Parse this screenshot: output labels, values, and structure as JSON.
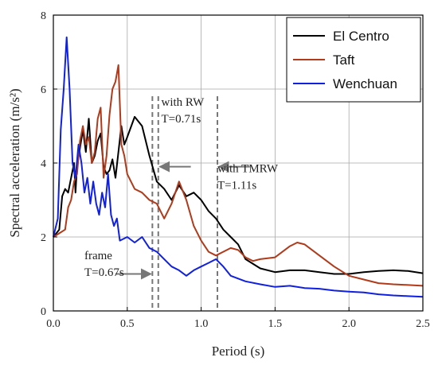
{
  "chart_data": {
    "type": "line",
    "xlabel": "Period (s)",
    "ylabel": "Spectral acceleration (m/s²)",
    "xlim": [
      0,
      2.5
    ],
    "ylim": [
      0,
      8
    ],
    "xticks": [
      "0.0",
      "0.5",
      "1.0",
      "1.5",
      "2.0",
      "2.5"
    ],
    "yticks": [
      "0",
      "2",
      "4",
      "6",
      "8"
    ],
    "grid": true,
    "legend": "top-right",
    "series": [
      {
        "name": "El Centro",
        "color": "#000000",
        "x": [
          0.0,
          0.04,
          0.06,
          0.08,
          0.1,
          0.12,
          0.14,
          0.15,
          0.16,
          0.18,
          0.2,
          0.22,
          0.24,
          0.26,
          0.28,
          0.3,
          0.32,
          0.34,
          0.36,
          0.38,
          0.4,
          0.42,
          0.44,
          0.46,
          0.48,
          0.5,
          0.55,
          0.6,
          0.65,
          0.7,
          0.75,
          0.8,
          0.85,
          0.9,
          0.95,
          1.0,
          1.05,
          1.1,
          1.15,
          1.2,
          1.25,
          1.3,
          1.4,
          1.5,
          1.6,
          1.7,
          1.8,
          1.9,
          2.0,
          2.1,
          2.2,
          2.3,
          2.4,
          2.5
        ],
        "y": [
          2.0,
          2.2,
          3.1,
          3.3,
          3.2,
          3.6,
          4.0,
          3.2,
          3.9,
          4.4,
          4.9,
          4.3,
          5.2,
          4.0,
          4.2,
          4.6,
          4.8,
          3.9,
          3.7,
          3.8,
          4.1,
          3.6,
          4.3,
          5.0,
          4.5,
          4.7,
          5.25,
          5.0,
          4.2,
          3.5,
          3.3,
          3.0,
          3.4,
          3.1,
          3.2,
          3.0,
          2.7,
          2.5,
          2.2,
          2.0,
          1.8,
          1.4,
          1.15,
          1.05,
          1.1,
          1.1,
          1.05,
          1.0,
          1.0,
          1.05,
          1.08,
          1.1,
          1.08,
          1.02
        ]
      },
      {
        "name": "Taft",
        "color": "#b03a1a",
        "x": [
          0.0,
          0.04,
          0.08,
          0.1,
          0.12,
          0.14,
          0.16,
          0.18,
          0.2,
          0.22,
          0.24,
          0.26,
          0.28,
          0.3,
          0.32,
          0.34,
          0.36,
          0.38,
          0.4,
          0.42,
          0.44,
          0.46,
          0.48,
          0.5,
          0.55,
          0.6,
          0.65,
          0.7,
          0.75,
          0.8,
          0.85,
          0.9,
          0.95,
          1.0,
          1.05,
          1.1,
          1.15,
          1.2,
          1.25,
          1.3,
          1.35,
          1.4,
          1.5,
          1.55,
          1.6,
          1.65,
          1.7,
          1.8,
          1.9,
          2.0,
          2.1,
          2.2,
          2.3,
          2.4,
          2.5
        ],
        "y": [
          2.0,
          2.1,
          2.2,
          2.8,
          3.0,
          3.5,
          3.7,
          4.6,
          5.0,
          4.5,
          4.7,
          4.0,
          4.3,
          5.2,
          5.5,
          3.6,
          4.2,
          5.3,
          6.0,
          6.2,
          6.65,
          4.5,
          4.2,
          3.7,
          3.3,
          3.2,
          3.0,
          2.9,
          2.5,
          2.9,
          3.5,
          3.0,
          2.3,
          1.9,
          1.6,
          1.5,
          1.6,
          1.7,
          1.65,
          1.45,
          1.35,
          1.4,
          1.45,
          1.6,
          1.75,
          1.85,
          1.8,
          1.5,
          1.2,
          0.95,
          0.85,
          0.75,
          0.72,
          0.7,
          0.68
        ]
      },
      {
        "name": "Wenchuan",
        "color": "#1020e0",
        "x": [
          0.0,
          0.03,
          0.05,
          0.07,
          0.09,
          0.11,
          0.13,
          0.15,
          0.17,
          0.19,
          0.21,
          0.23,
          0.25,
          0.27,
          0.29,
          0.31,
          0.33,
          0.35,
          0.37,
          0.39,
          0.41,
          0.43,
          0.45,
          0.5,
          0.55,
          0.6,
          0.65,
          0.7,
          0.75,
          0.8,
          0.85,
          0.9,
          0.95,
          1.0,
          1.05,
          1.1,
          1.15,
          1.2,
          1.3,
          1.4,
          1.5,
          1.6,
          1.7,
          1.8,
          1.9,
          2.0,
          2.1,
          2.2,
          2.3,
          2.4,
          2.5
        ],
        "y": [
          2.0,
          2.5,
          4.9,
          6.0,
          7.4,
          6.0,
          4.0,
          3.6,
          4.5,
          4.0,
          3.2,
          3.6,
          2.9,
          3.5,
          2.9,
          2.6,
          3.2,
          2.8,
          3.7,
          2.6,
          2.3,
          2.5,
          1.9,
          2.0,
          1.85,
          2.0,
          1.7,
          1.6,
          1.4,
          1.2,
          1.1,
          0.95,
          1.1,
          1.2,
          1.3,
          1.4,
          1.2,
          0.95,
          0.8,
          0.72,
          0.65,
          0.68,
          0.62,
          0.6,
          0.55,
          0.52,
          0.5,
          0.45,
          0.42,
          0.4,
          0.38
        ]
      }
    ],
    "vlines": [
      {
        "x": 0.67,
        "color": "#777777"
      },
      {
        "x": 0.71,
        "color": "#777777"
      },
      {
        "x": 1.11,
        "color": "#777777"
      }
    ],
    "annotations": [
      {
        "lines": [
          "with RW",
          "T=0.71s"
        ],
        "x": 0.73,
        "y": 5.55,
        "arrow_from": [
          0.93,
          3.9
        ],
        "arrow_to": [
          0.72,
          3.9
        ]
      },
      {
        "lines": [
          "with TMRW",
          "T=1.11s"
        ],
        "x": 1.11,
        "y": 3.75,
        "arrow_from": [
          1.33,
          3.9
        ],
        "arrow_to": [
          1.12,
          3.9
        ]
      },
      {
        "lines": [
          "frame",
          "T=0.67s"
        ],
        "x": 0.21,
        "y": 1.4,
        "arrow_from": [
          0.42,
          1.0
        ],
        "arrow_to": [
          0.66,
          1.0
        ]
      }
    ]
  }
}
